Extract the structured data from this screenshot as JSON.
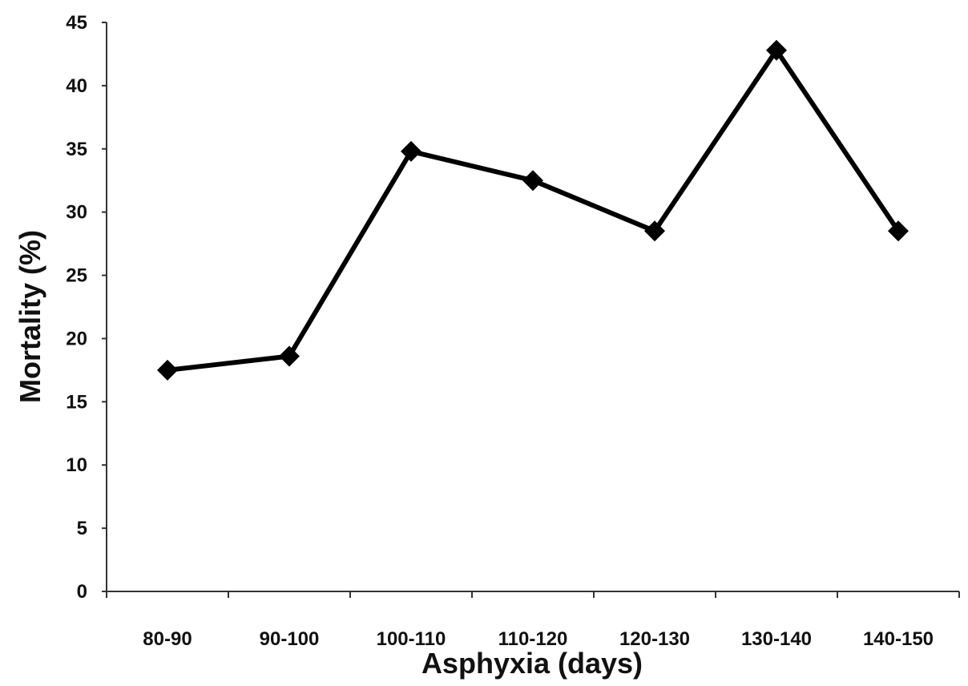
{
  "chart_data": {
    "type": "line",
    "title": "",
    "xlabel": "Asphyxia (days)",
    "ylabel": "Mortality (%)",
    "categories": [
      "80-90",
      "90-100",
      "100-110",
      "110-120",
      "120-130",
      "130-140",
      "140-150"
    ],
    "series": [
      {
        "values": [
          17.5,
          18.6,
          34.8,
          32.5,
          28.5,
          42.8,
          28.5
        ],
        "color": "#000000",
        "marker": "diamond"
      }
    ],
    "ylim": [
      0,
      45
    ],
    "yticks": [
      "0",
      "5",
      "10",
      "15",
      "20",
      "25",
      "30",
      "35",
      "40",
      "45"
    ],
    "grid": false,
    "legend": "none"
  }
}
